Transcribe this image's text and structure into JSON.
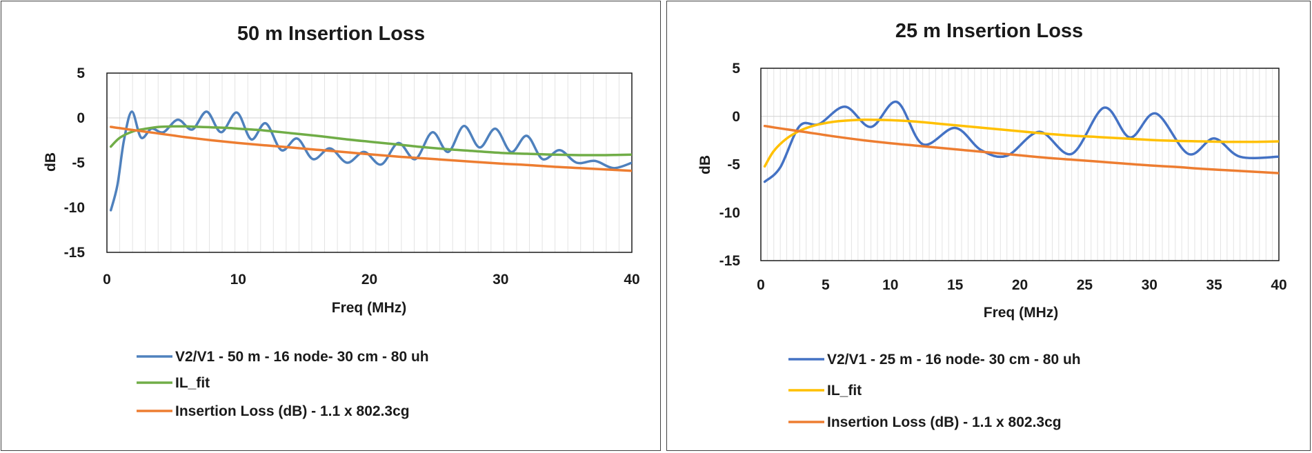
{
  "chart_data": [
    {
      "type": "line",
      "title": "50 m Insertion Loss",
      "xlabel": "Freq (MHz)",
      "ylabel": "dB",
      "xlim": [
        0,
        40
      ],
      "ylim": [
        -15,
        5
      ],
      "xticks": [
        "0",
        "10",
        "20",
        "30",
        "40"
      ],
      "yticks": [
        "5",
        "0",
        "-5",
        "-10",
        "-15"
      ],
      "grid": "vertical",
      "legend_position": "bottom",
      "series": [
        {
          "name": "V2/V1 - 50 m - 16 node- 30 cm - 80 uh",
          "color": "#4f81bd",
          "x": [
            0.3,
            0.8,
            1.3,
            1.9,
            2.6,
            3.4,
            4.3,
            5.4,
            6.5,
            7.6,
            8.7,
            9.9,
            11.0,
            12.1,
            13.3,
            14.5,
            15.7,
            17.0,
            18.3,
            19.6,
            20.9,
            22.2,
            23.5,
            24.8,
            26.0,
            27.2,
            28.4,
            29.6,
            30.8,
            32.0,
            33.2,
            34.5,
            35.8,
            37.2,
            38.6,
            40.0
          ],
          "y": [
            -10.3,
            -7.5,
            -2.5,
            0.7,
            -2.2,
            -1.2,
            -1.6,
            -0.2,
            -1.3,
            0.7,
            -1.6,
            0.6,
            -2.4,
            -0.6,
            -3.6,
            -2.3,
            -4.6,
            -3.4,
            -5.0,
            -3.8,
            -5.2,
            -2.8,
            -4.6,
            -1.6,
            -3.8,
            -0.9,
            -3.3,
            -1.2,
            -3.8,
            -2.0,
            -4.6,
            -3.6,
            -5.0,
            -4.8,
            -5.6,
            -5.0
          ]
        },
        {
          "name": "IL_fit",
          "color": "#70ad47",
          "x": [
            0.3,
            1,
            2,
            3,
            4,
            5,
            6,
            7,
            8,
            9,
            10,
            12,
            14,
            16,
            18,
            20,
            22,
            24,
            26,
            28,
            30,
            32,
            34,
            36,
            38,
            40
          ],
          "y": [
            -3.2,
            -2.2,
            -1.5,
            -1.2,
            -1.0,
            -0.95,
            -0.95,
            -1.0,
            -1.05,
            -1.1,
            -1.2,
            -1.4,
            -1.7,
            -2.0,
            -2.35,
            -2.65,
            -2.95,
            -3.25,
            -3.5,
            -3.7,
            -3.9,
            -4.0,
            -4.1,
            -4.15,
            -4.15,
            -4.1
          ]
        },
        {
          "name": "Insertion Loss (dB) - 1.1 x 802.3cg",
          "color": "#ed7d31",
          "x": [
            0.3,
            1,
            2,
            3,
            4,
            5,
            6,
            8,
            10,
            12,
            14,
            16,
            18,
            20,
            22,
            24,
            26,
            28,
            30,
            32,
            34,
            36,
            38,
            40
          ],
          "y": [
            -1.0,
            -1.15,
            -1.35,
            -1.55,
            -1.75,
            -1.95,
            -2.15,
            -2.5,
            -2.8,
            -3.05,
            -3.3,
            -3.55,
            -3.8,
            -4.05,
            -4.3,
            -4.5,
            -4.7,
            -4.9,
            -5.1,
            -5.25,
            -5.45,
            -5.6,
            -5.75,
            -5.9
          ]
        }
      ]
    },
    {
      "type": "line",
      "title": "25 m Insertion Loss",
      "xlabel": "Freq (MHz)",
      "ylabel": "dB",
      "xlim": [
        0,
        40
      ],
      "ylim": [
        -15,
        5
      ],
      "xticks": [
        "0",
        "5",
        "10",
        "15",
        "20",
        "25",
        "30",
        "35",
        "40"
      ],
      "yticks": [
        "5",
        "0",
        "-5",
        "-10",
        "-15"
      ],
      "grid": "vertical",
      "legend_position": "bottom",
      "series": [
        {
          "name": "V2/V1 - 25 m - 16 node- 30 cm - 80 uh",
          "color": "#4472c4",
          "x": [
            0.3,
            1.5,
            3.0,
            4.5,
            6.5,
            8.5,
            10.5,
            12.5,
            15.0,
            17.0,
            19.0,
            21.5,
            24.0,
            26.5,
            28.5,
            30.5,
            33.0,
            35.0,
            37.0,
            40.0
          ],
          "y": [
            -6.8,
            -5.3,
            -1.0,
            -0.8,
            1.0,
            -1.1,
            1.5,
            -2.9,
            -1.2,
            -3.5,
            -4.1,
            -1.6,
            -3.9,
            0.9,
            -2.2,
            0.3,
            -3.9,
            -2.3,
            -4.2,
            -4.2
          ]
        },
        {
          "name": "IL_fit",
          "color": "#ffc000",
          "x": [
            0.3,
            1,
            2,
            3,
            4,
            5,
            6,
            8,
            10,
            12,
            14,
            16,
            18,
            20,
            22,
            24,
            26,
            28,
            30,
            32,
            34,
            36,
            38,
            40
          ],
          "y": [
            -5.2,
            -3.6,
            -2.3,
            -1.5,
            -1.0,
            -0.7,
            -0.5,
            -0.35,
            -0.4,
            -0.55,
            -0.8,
            -1.05,
            -1.3,
            -1.55,
            -1.8,
            -2.0,
            -2.15,
            -2.3,
            -2.45,
            -2.55,
            -2.6,
            -2.65,
            -2.65,
            -2.6
          ]
        },
        {
          "name": "Insertion Loss (dB) - 1.1 x 802.3cg",
          "color": "#ed7d31",
          "x": [
            0.3,
            1,
            2,
            3,
            4,
            5,
            6,
            8,
            10,
            12,
            14,
            16,
            18,
            20,
            22,
            24,
            26,
            28,
            30,
            32,
            34,
            36,
            38,
            40
          ],
          "y": [
            -1.0,
            -1.15,
            -1.35,
            -1.55,
            -1.75,
            -1.95,
            -2.15,
            -2.5,
            -2.8,
            -3.05,
            -3.3,
            -3.55,
            -3.8,
            -4.05,
            -4.3,
            -4.5,
            -4.7,
            -4.9,
            -5.1,
            -5.25,
            -5.45,
            -5.6,
            -5.75,
            -5.9
          ]
        }
      ]
    }
  ]
}
